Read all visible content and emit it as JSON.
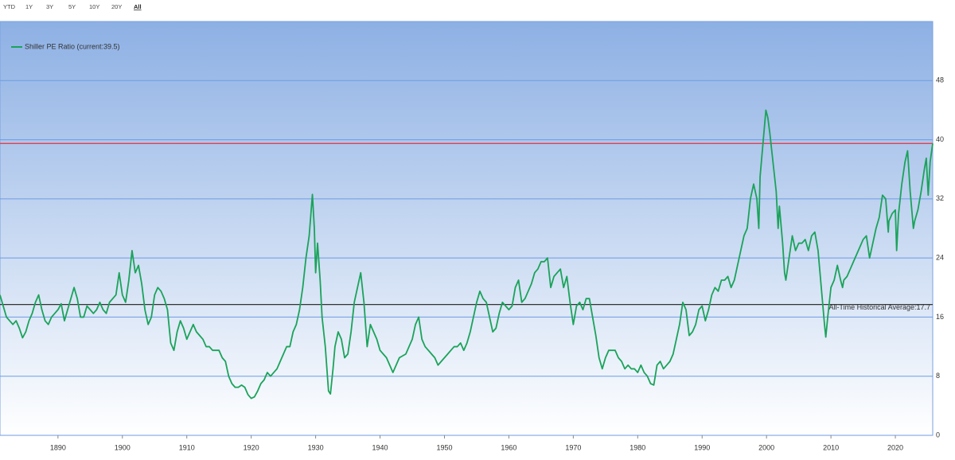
{
  "range_buttons": [
    "YTD",
    "1Y",
    "3Y",
    "5Y",
    "10Y",
    "20Y",
    "All"
  ],
  "selected_button_index": 6,
  "chart_data": {
    "type": "line",
    "x": [
      1881.0,
      1881.5,
      1882,
      1883,
      1883.5,
      1884,
      1884.5,
      1885,
      1885.5,
      1886,
      1886.5,
      1887,
      1887.5,
      1888,
      1888.5,
      1889,
      1889.5,
      1890,
      1890.5,
      1891,
      1891.5,
      1892,
      1892.5,
      1893,
      1893.5,
      1894,
      1894.5,
      1895,
      1895.5,
      1896,
      1896.5,
      1897,
      1897.5,
      1898,
      1898.5,
      1899,
      1899.5,
      1900,
      1900.5,
      1901,
      1901.5,
      1902,
      1902.5,
      1903,
      1903.5,
      1904,
      1904.5,
      1905,
      1905.5,
      1906,
      1906.5,
      1907,
      1907.5,
      1908,
      1908.5,
      1909,
      1909.5,
      1910,
      1910.5,
      1911,
      1911.5,
      1912,
      1912.5,
      1913,
      1913.5,
      1914,
      1915,
      1915.5,
      1916,
      1916.5,
      1917,
      1917.5,
      1918,
      1918.5,
      1919,
      1919.5,
      1920,
      1920.5,
      1921,
      1921.5,
      1922,
      1922.5,
      1923,
      1923.5,
      1924,
      1924.5,
      1925,
      1925.5,
      1926,
      1926.5,
      1927,
      1927.5,
      1928,
      1928.5,
      1929,
      1929.5,
      1929.8,
      1930,
      1930.3,
      1930.7,
      1931,
      1931.5,
      1932,
      1932.3,
      1932.7,
      1933,
      1933.5,
      1934,
      1934.5,
      1935,
      1935.5,
      1936,
      1936.5,
      1937,
      1937.5,
      1938,
      1938.5,
      1939,
      1939.5,
      1940,
      1940.5,
      1941,
      1941.5,
      1942,
      1942.5,
      1943,
      1944,
      1944.5,
      1945,
      1945.5,
      1946,
      1946.5,
      1947,
      1947.5,
      1948,
      1948.5,
      1949,
      1949.5,
      1950,
      1950.5,
      1951,
      1951.5,
      1952,
      1952.5,
      1953,
      1953.5,
      1954,
      1954.5,
      1955,
      1955.5,
      1956,
      1956.5,
      1957,
      1957.5,
      1958,
      1958.5,
      1959,
      1960,
      1960.5,
      1961,
      1961.5,
      1962,
      1962.5,
      1963,
      1963.5,
      1964,
      1964.5,
      1965,
      1965.5,
      1966,
      1966.5,
      1967,
      1967.5,
      1968,
      1968.5,
      1969,
      1969.5,
      1970,
      1970.5,
      1971,
      1971.5,
      1972,
      1972.5,
      1973,
      1973.5,
      1974,
      1974.5,
      1975,
      1975.5,
      1976,
      1976.5,
      1977,
      1977.5,
      1978,
      1978.5,
      1979,
      1979.5,
      1980,
      1980.5,
      1981,
      1981.5,
      1982,
      1982.5,
      1983,
      1983.5,
      1984,
      1984.5,
      1985,
      1985.5,
      1986,
      1986.5,
      1987,
      1987.5,
      1988,
      1988.5,
      1989,
      1989.5,
      1990,
      1990.5,
      1991,
      1991.5,
      1992,
      1992.5,
      1993,
      1993.5,
      1994,
      1994.5,
      1995,
      1995.5,
      1996,
      1996.5,
      1997,
      1997.5,
      1998,
      1998.5,
      1998.8,
      1999,
      1999.5,
      1999.9,
      2000.2,
      2000.5,
      2001,
      2001.5,
      2001.8,
      2002,
      2002.5,
      2002.8,
      2003,
      2003.5,
      2004,
      2004.5,
      2005,
      2005.5,
      2006,
      2006.5,
      2007,
      2007.5,
      2008,
      2008.5,
      2009,
      2009.2,
      2009.5,
      2010,
      2010.5,
      2011,
      2011.5,
      2011.8,
      2012,
      2012.5,
      2013,
      2013.5,
      2014,
      2014.5,
      2015,
      2015.5,
      2016,
      2016.5,
      2017,
      2017.5,
      2018,
      2018.5,
      2018.9,
      2019,
      2019.5,
      2020,
      2020.2,
      2020.5,
      2021,
      2021.5,
      2021.9,
      2022.3,
      2022.8,
      2023,
      2023.5,
      2024,
      2024.5,
      2024.8,
      2025.1,
      2025.4,
      2025.8
    ],
    "series": [
      {
        "name": "Shiller PE Ratio (current:39.5)",
        "color": "#1aa35a",
        "values": [
          19,
          17.5,
          16,
          15,
          15.5,
          14.5,
          13.2,
          14,
          15.5,
          16.5,
          18,
          19,
          17,
          15.5,
          15,
          16,
          16.5,
          17,
          17.8,
          15.5,
          17,
          18.5,
          20,
          18.5,
          16,
          16,
          17.5,
          17,
          16.5,
          17,
          18,
          17,
          16.5,
          18,
          18.5,
          19,
          22,
          19,
          18,
          21,
          25,
          22,
          23,
          20.5,
          17,
          15,
          16,
          19,
          20,
          19.5,
          18.5,
          17,
          12.5,
          11.5,
          14,
          15.5,
          14.5,
          13,
          14,
          15,
          14,
          13.5,
          13,
          12,
          12,
          11.5,
          11.5,
          10.5,
          10,
          8,
          7,
          6.5,
          6.5,
          6.8,
          6.5,
          5.5,
          5,
          5.2,
          6,
          7,
          7.5,
          8.5,
          8,
          8.5,
          9,
          10,
          11,
          12,
          12,
          14,
          15,
          17,
          20,
          24,
          27,
          32.6,
          28,
          22,
          26,
          21,
          16,
          12,
          6,
          5.6,
          9,
          12,
          14,
          13,
          10.5,
          11,
          14,
          18,
          20,
          22,
          18,
          12,
          15,
          14,
          13,
          11.5,
          11,
          10.5,
          9.5,
          8.5,
          9.5,
          10.5,
          11,
          12,
          13,
          15,
          16,
          13,
          12,
          11.5,
          11,
          10.5,
          9.5,
          10,
          10.5,
          11,
          11.5,
          12,
          12,
          12.5,
          11.5,
          12.5,
          14,
          16,
          18,
          19.5,
          18.5,
          18,
          16,
          14,
          14.5,
          16.5,
          18,
          17,
          17.5,
          20,
          21,
          18,
          18.5,
          19.5,
          20.5,
          22,
          22.5,
          23.5,
          23.5,
          24,
          20,
          21.5,
          22,
          22.5,
          20,
          21.5,
          18,
          15,
          17.5,
          18,
          17,
          18.5,
          18.5,
          16,
          13.5,
          10.5,
          9,
          10.5,
          11.5,
          11.5,
          11.5,
          10.5,
          10,
          9,
          9.5,
          9,
          9,
          8.5,
          9.5,
          8.5,
          8,
          7,
          6.8,
          9.5,
          10,
          9,
          9.5,
          10,
          11,
          13,
          15,
          18,
          17,
          13.5,
          14,
          15,
          17,
          17.5,
          15.5,
          17,
          19,
          20,
          19.5,
          21,
          21,
          21.5,
          20,
          21,
          23,
          25,
          27,
          28,
          32,
          34,
          32,
          28,
          35,
          40,
          44,
          43,
          41,
          37,
          33,
          28,
          31,
          26,
          22,
          21,
          24,
          27,
          25,
          26,
          26,
          26.5,
          25,
          27,
          27.5,
          25,
          20,
          15,
          13.3,
          16,
          20,
          21,
          23,
          21,
          20,
          21,
          21.5,
          22.5,
          23.5,
          24.5,
          25.5,
          26.5,
          27,
          24,
          26,
          28,
          29.5,
          32.5,
          32,
          27.5,
          29,
          30,
          30.5,
          25,
          30,
          34,
          37,
          38.5,
          33,
          28,
          29,
          30.5,
          33,
          36,
          37.5,
          32.5,
          37,
          39.5
        ]
      }
    ],
    "reference_lines": [
      {
        "value": 39.5,
        "color": "#e8303f"
      },
      {
        "value": 17.7,
        "color": "#333333",
        "label": "All-Time Historical Average:17.7"
      }
    ],
    "xlim": [
      1881,
      2025.8
    ],
    "xticks": [
      1890,
      1900,
      1910,
      1920,
      1930,
      1940,
      1950,
      1960,
      1970,
      1980,
      1990,
      2000,
      2010,
      2020
    ],
    "ylim": [
      0,
      56
    ],
    "yticks": [
      0,
      8,
      16,
      24,
      32,
      40,
      48
    ],
    "grid": true,
    "grid_color": "#6d9be3",
    "legend": "top-left"
  }
}
